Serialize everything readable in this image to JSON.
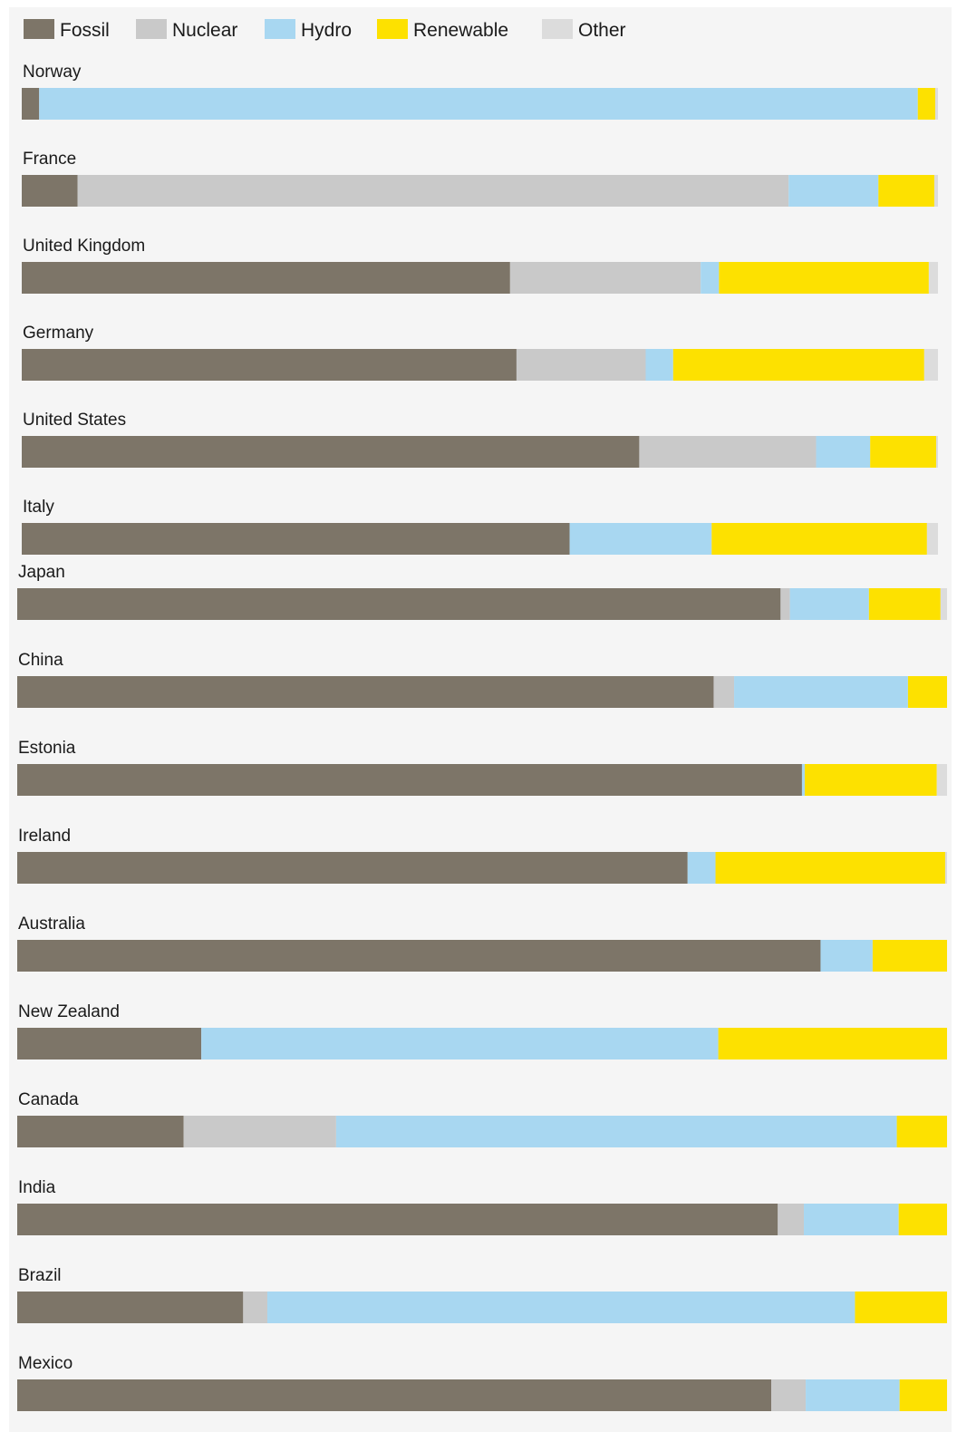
{
  "chart_data": {
    "type": "bar",
    "stacked": true,
    "orientation": "horizontal",
    "normalized_percent": true,
    "legend_position": "top-left",
    "grid": false,
    "series": [
      {
        "name": "Fossil",
        "color": "#7d7568"
      },
      {
        "name": "Nuclear",
        "color": "#c9c9c9"
      },
      {
        "name": "Hydro",
        "color": "#a8d7f1"
      },
      {
        "name": "Renewable",
        "color": "#fde100"
      },
      {
        "name": "Other",
        "color": "#dcdcdc"
      }
    ],
    "categories": [
      {
        "name": "Norway",
        "values": [
          1.9,
          0,
          95.9,
          1.9,
          0.3
        ]
      },
      {
        "name": "France",
        "values": [
          6.1,
          77.6,
          9.8,
          6.1,
          0.4
        ]
      },
      {
        "name": "United Kingdom",
        "values": [
          53.3,
          20.8,
          2.0,
          22.9,
          1.0
        ]
      },
      {
        "name": "Germany",
        "values": [
          54.0,
          14.1,
          3.0,
          27.4,
          1.5
        ]
      },
      {
        "name": "United States",
        "values": [
          67.4,
          19.3,
          5.9,
          7.2,
          0.2
        ]
      },
      {
        "name": "Italy",
        "values": [
          59.8,
          0,
          15.5,
          23.5,
          1.2
        ]
      },
      {
        "name": "Japan",
        "values": [
          82.1,
          1.0,
          8.5,
          7.7,
          0.7
        ]
      },
      {
        "name": "China",
        "values": [
          74.9,
          2.2,
          18.7,
          4.2,
          0
        ]
      },
      {
        "name": "Estonia",
        "values": [
          84.4,
          0,
          0.3,
          14.2,
          1.1
        ]
      },
      {
        "name": "Ireland",
        "values": [
          72.1,
          0,
          3.0,
          24.7,
          0.2
        ]
      },
      {
        "name": "Australia",
        "values": [
          86.4,
          0,
          5.6,
          8.0,
          0
        ]
      },
      {
        "name": "New Zealand",
        "values": [
          19.8,
          0,
          55.6,
          24.6,
          0
        ]
      },
      {
        "name": "Canada",
        "values": [
          17.9,
          16.4,
          60.3,
          5.4,
          0
        ]
      },
      {
        "name": "India",
        "values": [
          81.8,
          2.8,
          10.2,
          5.2,
          0
        ]
      },
      {
        "name": "Brazil",
        "values": [
          24.3,
          2.6,
          63.2,
          9.9,
          0
        ]
      },
      {
        "name": "Mexico",
        "values": [
          81.1,
          3.7,
          10.1,
          5.1,
          0
        ]
      }
    ]
  }
}
